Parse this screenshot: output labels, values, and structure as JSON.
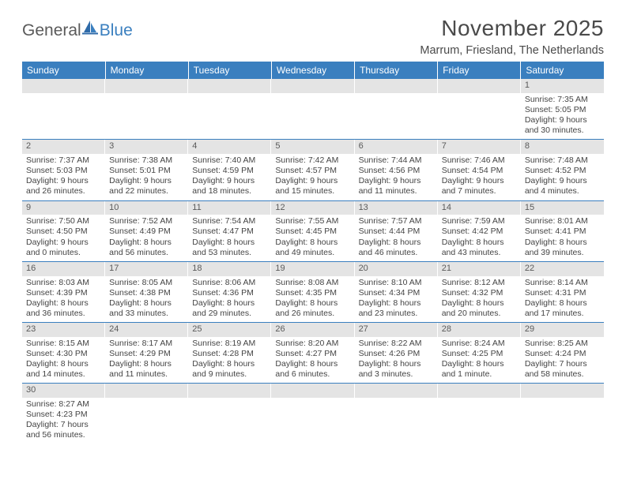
{
  "logo": {
    "text1": "General",
    "text2": "Blue"
  },
  "title": "November 2025",
  "subtitle": "Marrum, Friesland, The Netherlands",
  "colors": {
    "header_bg": "#3a7fbf",
    "header_text": "#ffffff",
    "daynum_bg": "#e4e4e4",
    "cell_border": "#3a7fbf",
    "logo_accent": "#3a7fbf"
  },
  "day_headers": [
    "Sunday",
    "Monday",
    "Tuesday",
    "Wednesday",
    "Thursday",
    "Friday",
    "Saturday"
  ],
  "weeks": [
    [
      null,
      null,
      null,
      null,
      null,
      null,
      {
        "n": "1",
        "sr": "7:35 AM",
        "ss": "5:05 PM",
        "dl1": "9 hours",
        "dl2": "and 30 minutes."
      }
    ],
    [
      {
        "n": "2",
        "sr": "7:37 AM",
        "ss": "5:03 PM",
        "dl1": "9 hours",
        "dl2": "and 26 minutes."
      },
      {
        "n": "3",
        "sr": "7:38 AM",
        "ss": "5:01 PM",
        "dl1": "9 hours",
        "dl2": "and 22 minutes."
      },
      {
        "n": "4",
        "sr": "7:40 AM",
        "ss": "4:59 PM",
        "dl1": "9 hours",
        "dl2": "and 18 minutes."
      },
      {
        "n": "5",
        "sr": "7:42 AM",
        "ss": "4:57 PM",
        "dl1": "9 hours",
        "dl2": "and 15 minutes."
      },
      {
        "n": "6",
        "sr": "7:44 AM",
        "ss": "4:56 PM",
        "dl1": "9 hours",
        "dl2": "and 11 minutes."
      },
      {
        "n": "7",
        "sr": "7:46 AM",
        "ss": "4:54 PM",
        "dl1": "9 hours",
        "dl2": "and 7 minutes."
      },
      {
        "n": "8",
        "sr": "7:48 AM",
        "ss": "4:52 PM",
        "dl1": "9 hours",
        "dl2": "and 4 minutes."
      }
    ],
    [
      {
        "n": "9",
        "sr": "7:50 AM",
        "ss": "4:50 PM",
        "dl1": "9 hours",
        "dl2": "and 0 minutes."
      },
      {
        "n": "10",
        "sr": "7:52 AM",
        "ss": "4:49 PM",
        "dl1": "8 hours",
        "dl2": "and 56 minutes."
      },
      {
        "n": "11",
        "sr": "7:54 AM",
        "ss": "4:47 PM",
        "dl1": "8 hours",
        "dl2": "and 53 minutes."
      },
      {
        "n": "12",
        "sr": "7:55 AM",
        "ss": "4:45 PM",
        "dl1": "8 hours",
        "dl2": "and 49 minutes."
      },
      {
        "n": "13",
        "sr": "7:57 AM",
        "ss": "4:44 PM",
        "dl1": "8 hours",
        "dl2": "and 46 minutes."
      },
      {
        "n": "14",
        "sr": "7:59 AM",
        "ss": "4:42 PM",
        "dl1": "8 hours",
        "dl2": "and 43 minutes."
      },
      {
        "n": "15",
        "sr": "8:01 AM",
        "ss": "4:41 PM",
        "dl1": "8 hours",
        "dl2": "and 39 minutes."
      }
    ],
    [
      {
        "n": "16",
        "sr": "8:03 AM",
        "ss": "4:39 PM",
        "dl1": "8 hours",
        "dl2": "and 36 minutes."
      },
      {
        "n": "17",
        "sr": "8:05 AM",
        "ss": "4:38 PM",
        "dl1": "8 hours",
        "dl2": "and 33 minutes."
      },
      {
        "n": "18",
        "sr": "8:06 AM",
        "ss": "4:36 PM",
        "dl1": "8 hours",
        "dl2": "and 29 minutes."
      },
      {
        "n": "19",
        "sr": "8:08 AM",
        "ss": "4:35 PM",
        "dl1": "8 hours",
        "dl2": "and 26 minutes."
      },
      {
        "n": "20",
        "sr": "8:10 AM",
        "ss": "4:34 PM",
        "dl1": "8 hours",
        "dl2": "and 23 minutes."
      },
      {
        "n": "21",
        "sr": "8:12 AM",
        "ss": "4:32 PM",
        "dl1": "8 hours",
        "dl2": "and 20 minutes."
      },
      {
        "n": "22",
        "sr": "8:14 AM",
        "ss": "4:31 PM",
        "dl1": "8 hours",
        "dl2": "and 17 minutes."
      }
    ],
    [
      {
        "n": "23",
        "sr": "8:15 AM",
        "ss": "4:30 PM",
        "dl1": "8 hours",
        "dl2": "and 14 minutes."
      },
      {
        "n": "24",
        "sr": "8:17 AM",
        "ss": "4:29 PM",
        "dl1": "8 hours",
        "dl2": "and 11 minutes."
      },
      {
        "n": "25",
        "sr": "8:19 AM",
        "ss": "4:28 PM",
        "dl1": "8 hours",
        "dl2": "and 9 minutes."
      },
      {
        "n": "26",
        "sr": "8:20 AM",
        "ss": "4:27 PM",
        "dl1": "8 hours",
        "dl2": "and 6 minutes."
      },
      {
        "n": "27",
        "sr": "8:22 AM",
        "ss": "4:26 PM",
        "dl1": "8 hours",
        "dl2": "and 3 minutes."
      },
      {
        "n": "28",
        "sr": "8:24 AM",
        "ss": "4:25 PM",
        "dl1": "8 hours",
        "dl2": "and 1 minute."
      },
      {
        "n": "29",
        "sr": "8:25 AM",
        "ss": "4:24 PM",
        "dl1": "7 hours",
        "dl2": "and 58 minutes."
      }
    ],
    [
      {
        "n": "30",
        "sr": "8:27 AM",
        "ss": "4:23 PM",
        "dl1": "7 hours",
        "dl2": "and 56 minutes."
      },
      null,
      null,
      null,
      null,
      null,
      null
    ]
  ],
  "labels": {
    "sunrise": "Sunrise: ",
    "sunset": "Sunset: ",
    "daylight": "Daylight: "
  }
}
